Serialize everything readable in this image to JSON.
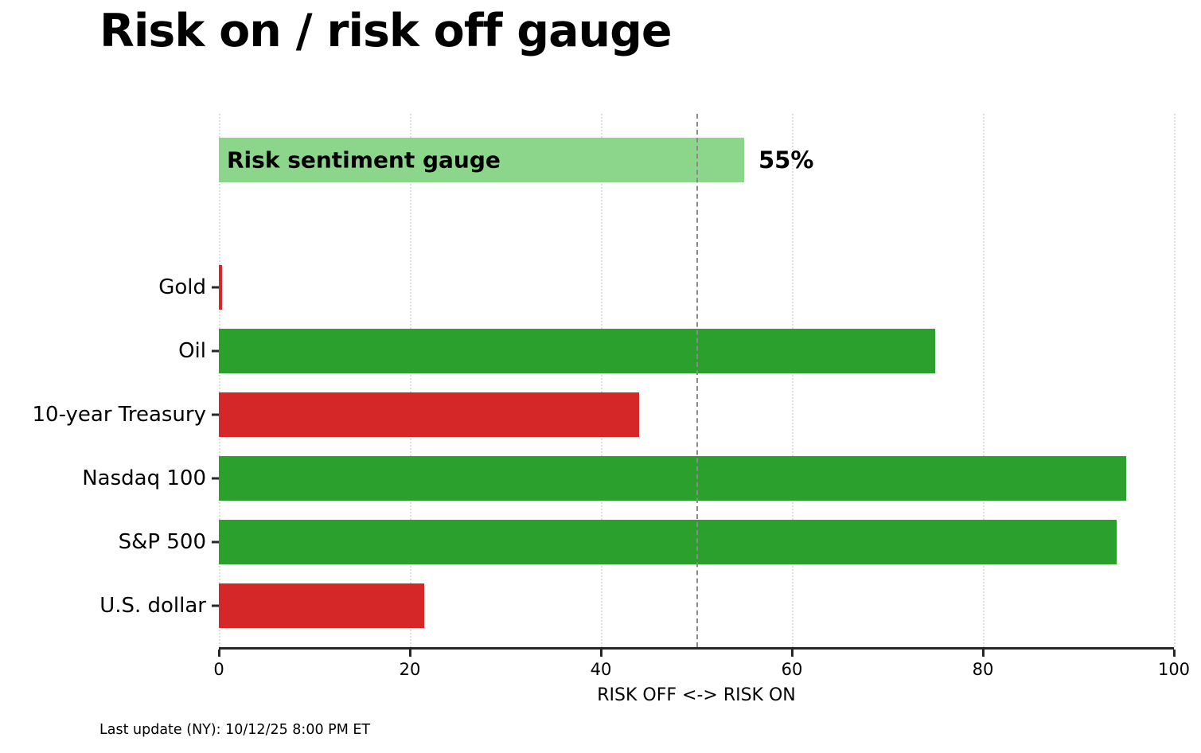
{
  "title": "Risk on / risk off gauge",
  "footer": "Last update (NY): 10/12/25 8:00 PM ET",
  "colors": {
    "risk_on_green": "#2ca02c",
    "risk_off_red": "#d62728",
    "gauge_light_green": "#8cd68c",
    "midline_gray": "#8a8a8a",
    "grid_gray": "#dcdcdc",
    "axis_dark": "#262626"
  },
  "chart_data": {
    "type": "bar",
    "orientation": "horizontal",
    "title": "Risk on / risk off gauge",
    "xlabel": "RISK OFF <-> RISK ON",
    "xlim": [
      0,
      100
    ],
    "xticks": [
      "0",
      "20",
      "40",
      "60",
      "80",
      "100"
    ],
    "xtick_values": [
      0,
      20,
      40,
      60,
      80,
      100
    ],
    "grid": "dotted-vertical",
    "midline_x": 50,
    "gauge": {
      "label": "Risk sentiment gauge",
      "value": 55,
      "value_label": "55%",
      "color": "#8cd68c"
    },
    "categories": [
      "Gold",
      "Oil",
      "10-year Treasury",
      "Nasdaq 100",
      "S&P 500",
      "U.S. dollar"
    ],
    "values": [
      0.3,
      75,
      44,
      95,
      94,
      21.5
    ],
    "bar_colors": [
      "#d62728",
      "#2ca02c",
      "#d62728",
      "#2ca02c",
      "#2ca02c",
      "#d62728"
    ]
  }
}
